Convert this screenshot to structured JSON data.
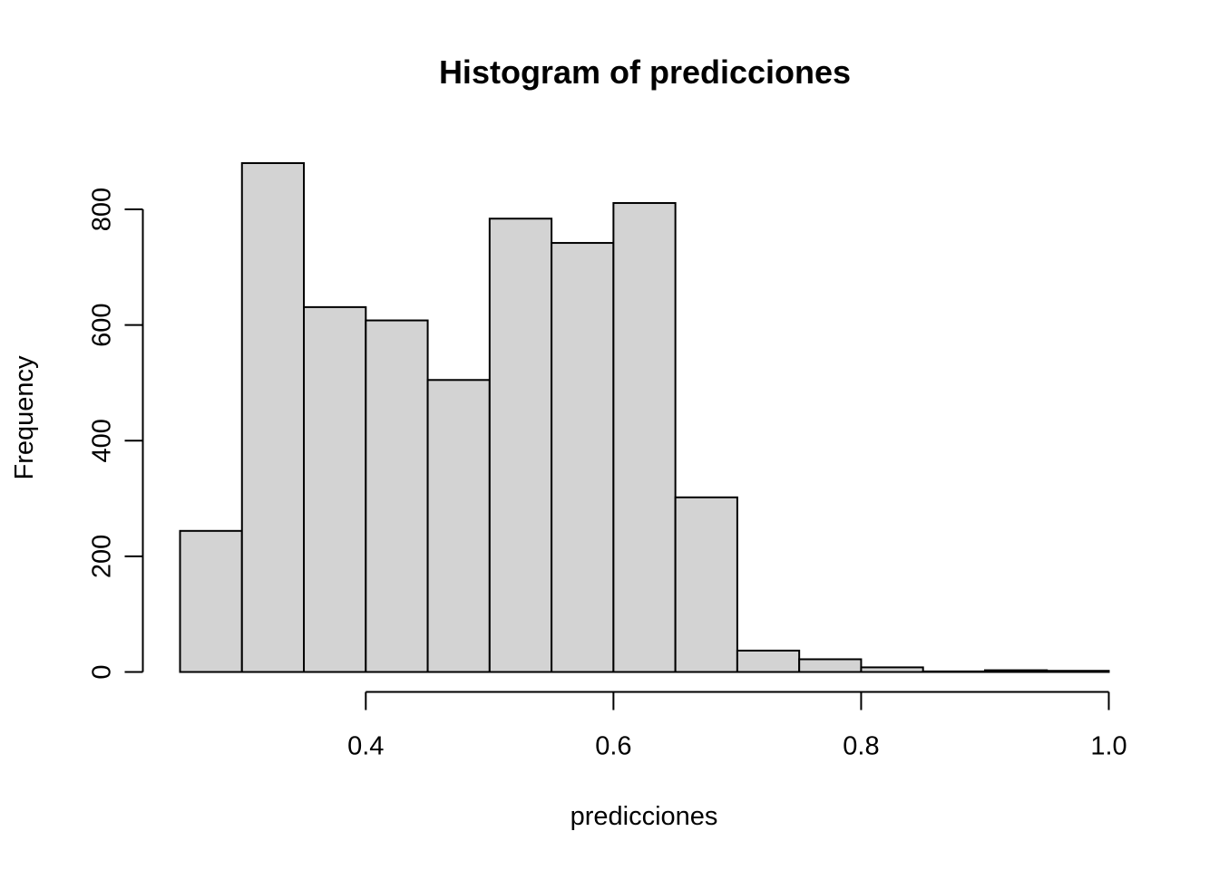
{
  "chart_data": {
    "type": "bar",
    "title": "Histogram of predicciones",
    "xlabel": "predicciones",
    "ylabel": "Frequency",
    "bin_edges": [
      0.25,
      0.3,
      0.35,
      0.4,
      0.45,
      0.5,
      0.55,
      0.6,
      0.65,
      0.7,
      0.75,
      0.8,
      0.85,
      0.9,
      0.95,
      1.0
    ],
    "values": [
      244,
      880,
      631,
      608,
      505,
      784,
      742,
      811,
      302,
      37,
      22,
      8,
      1,
      3,
      2
    ],
    "xlim": [
      0.25,
      1.0
    ],
    "ylim": [
      0,
      880
    ],
    "x_ticks": [
      {
        "value": 0.4,
        "label": "0.4"
      },
      {
        "value": 0.6,
        "label": "0.6"
      },
      {
        "value": 0.8,
        "label": "0.8"
      },
      {
        "value": 1.0,
        "label": "1.0"
      }
    ],
    "y_ticks": [
      {
        "value": 0,
        "label": "0"
      },
      {
        "value": 200,
        "label": "200"
      },
      {
        "value": 400,
        "label": "400"
      },
      {
        "value": 600,
        "label": "600"
      },
      {
        "value": 800,
        "label": "800"
      }
    ],
    "grid": false,
    "legend": "none",
    "colors": {
      "bar_fill": "#d3d3d3",
      "bar_stroke": "#000000"
    }
  }
}
